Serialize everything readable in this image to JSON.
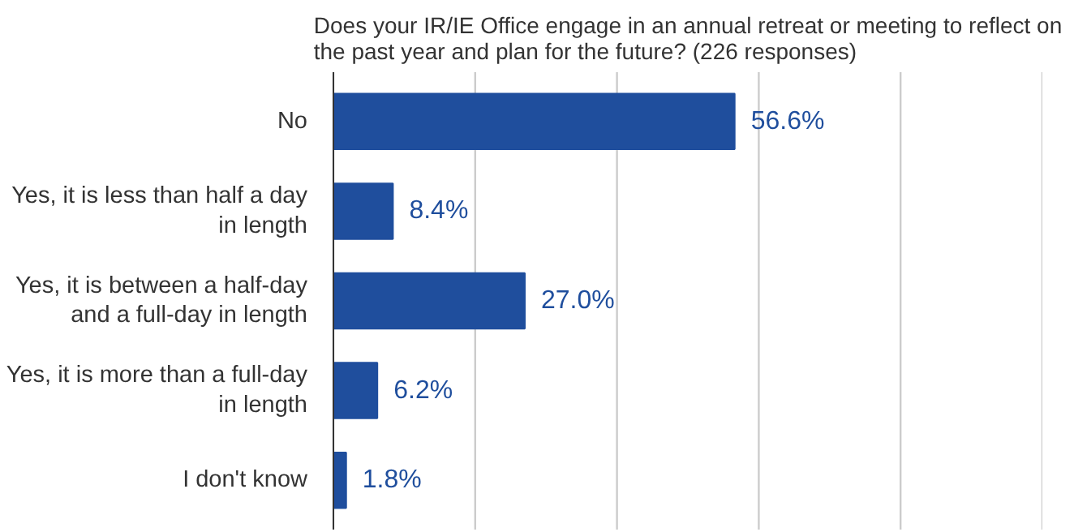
{
  "chart_data": {
    "type": "bar",
    "orientation": "horizontal",
    "title": "Does your IR/IE Office engage in an annual retreat or meeting to reflect on the past year and plan for the future? (226 responses)",
    "categories": [
      "No",
      "Yes, it is less than half a day in length",
      "Yes, it is between a half-day and a full-day in length",
      "Yes, it is more than a full-day in length",
      "I don't know"
    ],
    "values": [
      56.6,
      8.4,
      27.0,
      6.2,
      1.8
    ],
    "value_labels": [
      "56.6%",
      "8.4%",
      "27.0%",
      "6.2%",
      "1.8%"
    ],
    "color": "#1f4e9d",
    "xlim": [
      0,
      100
    ],
    "xticks": [
      {
        "value": 0,
        "label": null
      },
      {
        "value": 20,
        "label": null
      },
      {
        "value": 40,
        "label": null
      },
      {
        "value": 60,
        "label": null
      },
      {
        "value": 80,
        "label": null
      },
      {
        "value": 100,
        "label": null
      }
    ],
    "grid": "x",
    "tick_labels": "y"
  }
}
